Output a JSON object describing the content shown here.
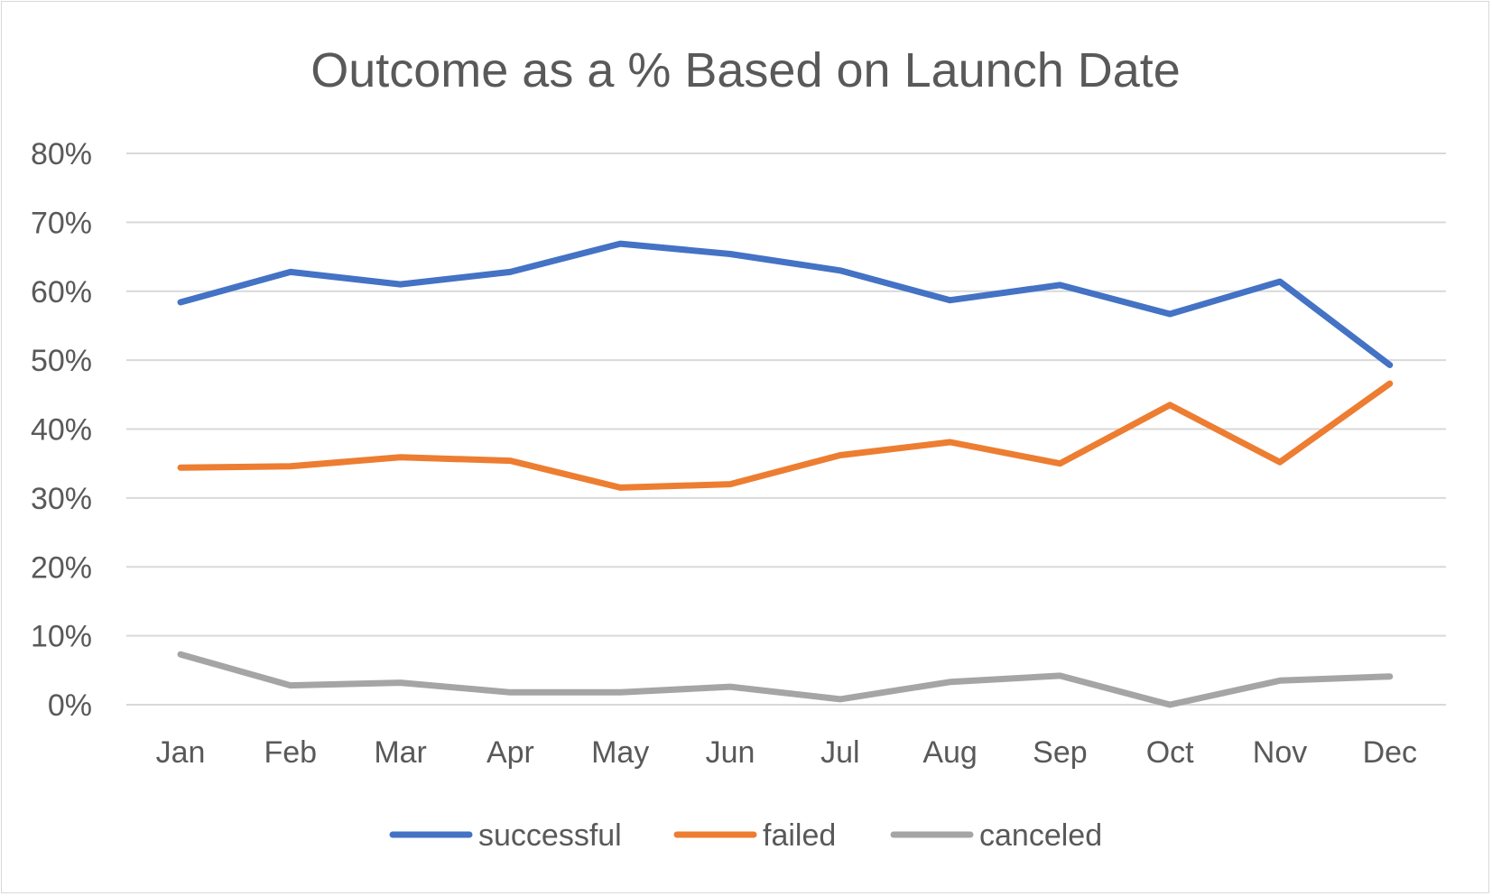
{
  "chart_data": {
    "type": "line",
    "title": "Outcome as a % Based on Launch Date",
    "xlabel": "",
    "ylabel": "",
    "categories": [
      "Jan",
      "Feb",
      "Mar",
      "Apr",
      "May",
      "Jun",
      "Jul",
      "Aug",
      "Sep",
      "Oct",
      "Nov",
      "Dec"
    ],
    "ylim": [
      0,
      80
    ],
    "yticks": [
      0,
      10,
      20,
      30,
      40,
      50,
      60,
      70,
      80
    ],
    "ytick_labels": [
      "0%",
      "10%",
      "20%",
      "30%",
      "40%",
      "50%",
      "60%",
      "70%",
      "80%"
    ],
    "grid": "horizontal",
    "legend_position": "bottom",
    "series": [
      {
        "name": "successful",
        "color": "#4472c4",
        "values": [
          58.4,
          62.8,
          61.0,
          62.8,
          66.9,
          65.4,
          63.0,
          58.7,
          60.9,
          56.7,
          61.4,
          49.3
        ]
      },
      {
        "name": "failed",
        "color": "#ed7d31",
        "values": [
          34.4,
          34.6,
          35.9,
          35.4,
          31.5,
          32.0,
          36.2,
          38.1,
          35.0,
          43.5,
          35.2,
          46.6
        ]
      },
      {
        "name": "canceled",
        "color": "#a5a5a5",
        "values": [
          7.3,
          2.8,
          3.2,
          1.8,
          1.8,
          2.6,
          0.8,
          3.3,
          4.2,
          0.0,
          3.5,
          4.1
        ]
      }
    ]
  }
}
